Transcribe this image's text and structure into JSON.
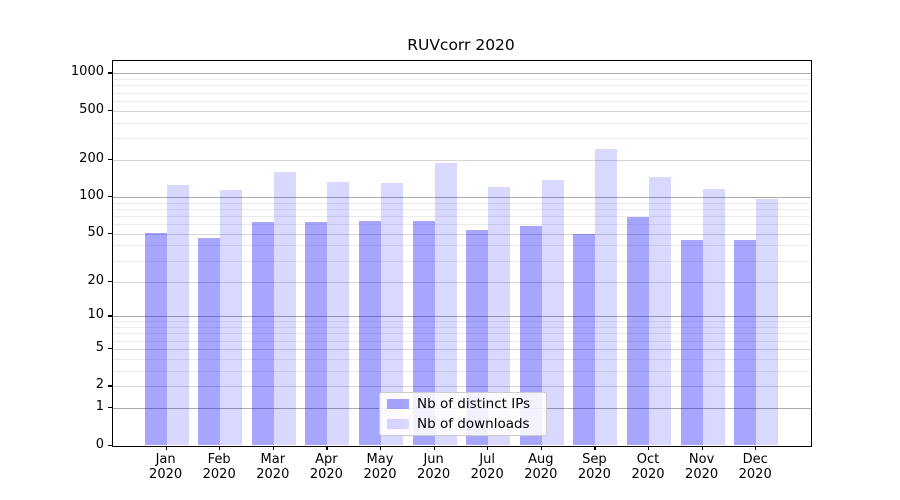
{
  "chart_data": {
    "type": "bar",
    "title": "RUVcorr 2020",
    "categories": [
      "Jan 2020",
      "Feb 2020",
      "Mar 2020",
      "Apr 2020",
      "May 2020",
      "Jun 2020",
      "Jul 2020",
      "Aug 2020",
      "Sep 2020",
      "Oct 2020",
      "Nov 2020",
      "Dec 2020"
    ],
    "month_labels": [
      "Jan",
      "Feb",
      "Mar",
      "Apr",
      "May",
      "Jun",
      "Jul",
      "Aug",
      "Sep",
      "Oct",
      "Nov",
      "Dec"
    ],
    "year_label": "2020",
    "series": [
      {
        "name": "Nb of distinct IPs",
        "color": "rgba(0,0,255,0.35)",
        "values": [
          51,
          46,
          62,
          62,
          63,
          64,
          54,
          58,
          50,
          68,
          44,
          44
        ]
      },
      {
        "name": "Nb of downloads",
        "color": "rgba(0,0,255,0.15)",
        "values": [
          124,
          114,
          160,
          131,
          129,
          187,
          120,
          136,
          246,
          145,
          115,
          97
        ]
      }
    ],
    "xlabel": "",
    "ylabel": "",
    "yscale": "log1p",
    "yticks": [
      0,
      1,
      2,
      5,
      10,
      20,
      50,
      100,
      200,
      500,
      1000
    ],
    "ytick_labels": [
      "0",
      "1",
      "2",
      "5",
      "10",
      "20",
      "50",
      "100",
      "200",
      "500",
      "1000"
    ],
    "minor_gridlines": [
      3,
      4,
      6,
      7,
      8,
      9,
      30,
      40,
      60,
      70,
      80,
      90,
      300,
      400,
      600,
      700,
      800,
      900
    ],
    "decade_gridlines": [
      1,
      10,
      100,
      1000
    ],
    "ylim": [
      0,
      1270
    ],
    "grid": "both",
    "legend_position": "lower-center",
    "colors": {
      "grid_minor": "#ececec",
      "grid_major": "#d5d5d5",
      "grid_decade": "#ababab",
      "axis": "#000000",
      "background": "#ffffff"
    }
  }
}
